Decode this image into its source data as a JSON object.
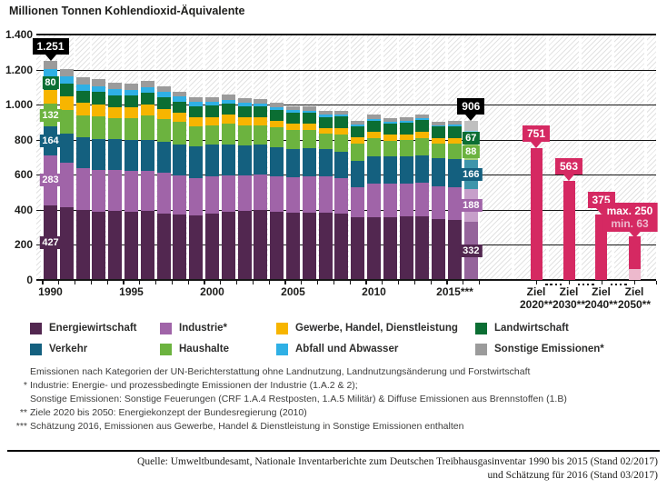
{
  "title": "Millionen Tonnen Kohlendioxid-Äquivalente",
  "chart_data": {
    "type": "bar",
    "stacked": true,
    "title": "Millionen Tonnen Kohlendioxid-Äquivalente",
    "years": [
      1990,
      1991,
      1992,
      1993,
      1994,
      1995,
      1996,
      1997,
      1998,
      1999,
      2000,
      2001,
      2002,
      2003,
      2004,
      2005,
      2006,
      2007,
      2008,
      2009,
      2010,
      2011,
      2012,
      2013,
      2014,
      2015,
      2016
    ],
    "estimate_year_index": 26,
    "x_axis_tick_labels": [
      {
        "index": 0,
        "label": "1990"
      },
      {
        "index": 5,
        "label": "1995"
      },
      {
        "index": 10,
        "label": "2000"
      },
      {
        "index": 15,
        "label": "2005"
      },
      {
        "index": 20,
        "label": "2010"
      },
      {
        "index": 25,
        "label": "2015***"
      }
    ],
    "y_axis": {
      "min": 0,
      "max": 1400,
      "step": 200,
      "tick_labels": [
        "0",
        "200",
        "400",
        "600",
        "800",
        "1.000",
        "1.200",
        "1.400"
      ]
    },
    "series": [
      {
        "name": "Energiewirtschaft",
        "color": "#522750",
        "estimate_tint": "#95649b",
        "values": [
          427,
          415,
          398,
          390,
          392,
          390,
          393,
          380,
          375,
          370,
          378,
          390,
          392,
          399,
          390,
          385,
          385,
          385,
          380,
          355,
          360,
          358,
          362,
          365,
          348,
          340,
          332
        ]
      },
      {
        "name": "Industrie",
        "color": "#a064a8",
        "estimate_tint": "#c79fca",
        "values": [
          283,
          254,
          242,
          239,
          235,
          230,
          227,
          232,
          221,
          209,
          211,
          207,
          202,
          202,
          202,
          202,
          208,
          205,
          199,
          174,
          191,
          193,
          187,
          189,
          186,
          188,
          188
        ]
      },
      {
        "name": "Verkehr",
        "color": "#14607f",
        "estimate_tint": "#3e95ab",
        "values": [
          164,
          168,
          173,
          176,
          175,
          177,
          177,
          176,
          179,
          184,
          181,
          177,
          175,
          170,
          167,
          160,
          157,
          154,
          153,
          152,
          153,
          154,
          154,
          157,
          159,
          163,
          166
        ]
      },
      {
        "name": "Haushalte",
        "color": "#6cb33f",
        "estimate_tint": "#a6d17f",
        "values": [
          132,
          134,
          126,
          130,
          122,
          128,
          140,
          130,
          125,
          115,
          114,
          120,
          114,
          112,
          110,
          108,
          104,
          92,
          100,
          96,
          104,
          90,
          94,
          100,
          85,
          88,
          88
        ]
      },
      {
        "name": "Gewerbe, Handel, Dienstleistung",
        "color": "#f7b500",
        "estimate_tint": "#fbd97f",
        "values": [
          78,
          77,
          70,
          68,
          63,
          60,
          65,
          58,
          52,
          48,
          44,
          48,
          44,
          44,
          40,
          38,
          38,
          32,
          36,
          36,
          38,
          32,
          34,
          36,
          30,
          32,
          0
        ]
      },
      {
        "name": "Landwirtschaft",
        "color": "#0b6e33",
        "estimate_tint": "#57a369",
        "values": [
          80,
          74,
          70,
          68,
          68,
          67,
          67,
          67,
          66,
          65,
          65,
          65,
          63,
          62,
          62,
          61,
          61,
          62,
          63,
          62,
          63,
          64,
          64,
          65,
          66,
          66,
          67
        ]
      },
      {
        "name": "Abfall und Abwasser",
        "color": "#2fb0e5",
        "estimate_tint": "#8ed4f2",
        "values": [
          38,
          37,
          36,
          35,
          34,
          33,
          31,
          29,
          27,
          25,
          23,
          21,
          19,
          17,
          15,
          14,
          13,
          12,
          12,
          11,
          11,
          10,
          10,
          10,
          10,
          10,
          10
        ]
      },
      {
        "name": "Sonstige Emissionen",
        "color": "#9b9b9b",
        "estimate_tint": "#bfbfbf",
        "values": [
          49,
          45,
          40,
          38,
          36,
          35,
          37,
          33,
          30,
          28,
          27,
          28,
          27,
          26,
          25,
          24,
          23,
          22,
          23,
          21,
          22,
          21,
          21,
          22,
          20,
          20,
          55
        ]
      }
    ],
    "labeled_segments": [
      {
        "bar_index": 0,
        "series": [
          "Energiewirtschaft",
          "Industrie",
          "Verkehr",
          "Haushalte",
          "Landwirtschaft"
        ]
      },
      {
        "bar_index": 26,
        "series": [
          "Energiewirtschaft",
          "Industrie",
          "Verkehr",
          "Haushalte",
          "Landwirtschaft"
        ]
      }
    ],
    "total_callouts": [
      {
        "bar_index": 0,
        "label": "1.251"
      },
      {
        "bar_index": 26,
        "label": "906"
      }
    ],
    "targets": {
      "color": "#d52962",
      "light_color": "#edb9cd",
      "items": [
        {
          "label_top": "Ziel",
          "label_bottom": "2020**",
          "value": 751,
          "callout": "751"
        },
        {
          "label_top": "Ziel",
          "label_bottom": "2030**",
          "value": 563,
          "callout": "563"
        },
        {
          "label_top": "Ziel",
          "label_bottom": "2040**",
          "value": 375,
          "callout": "375"
        },
        {
          "label_top": "Ziel",
          "label_bottom": "2050**",
          "value": 250,
          "min_value": 63,
          "callout_line1": "max. 250",
          "callout_line2": "min. 63"
        }
      ]
    }
  },
  "legend": {
    "items": [
      {
        "label": "Energiewirtschaft",
        "color": "#522750"
      },
      {
        "label": "Industrie*",
        "color": "#a064a8"
      },
      {
        "label": "Gewerbe, Handel, Dienstleistung",
        "color": "#f7b500"
      },
      {
        "label": "Landwirtschaft",
        "color": "#0b6e33"
      },
      {
        "label": "Verkehr",
        "color": "#14607f"
      },
      {
        "label": "Haushalte",
        "color": "#6cb33f"
      },
      {
        "label": "Abfall und Abwasser",
        "color": "#2fb0e5"
      },
      {
        "label": "Sonstige Emissionen*",
        "color": "#9b9b9b"
      }
    ]
  },
  "footnotes": [
    {
      "marker": "",
      "text": "Emissionen nach Kategorien der UN-Berichterstattung ohne Landnutzung, Landnutzungsänderung und Forstwirtschaft"
    },
    {
      "marker": "*",
      "text": "Industrie: Energie- und prozessbedingte Emissionen der Industrie (1.A.2 & 2);"
    },
    {
      "marker": "",
      "text": "Sonstige Emissionen: Sonstige Feuerungen (CRF 1.A.4 Restposten, 1.A.5 Militär) & Diffuse Emissionen aus Brennstoffen (1.B)"
    },
    {
      "marker": "**",
      "text": "Ziele 2020 bis 2050: Energiekonzept der Bundesregierung (2010)"
    },
    {
      "marker": "***",
      "text": "Schätzung 2016, Emissionen aus Gewerbe, Handel & Dienstleistung in Sonstige Emissionen enthalten"
    }
  ],
  "source": {
    "line1": "Quelle: Umweltbundesamt, Nationale Inventarberichte zum Deutschen Treibhausgasinventar 1990 bis 2015 (Stand 02/2017)",
    "line2": "und Schätzung für 2016 (Stand 03/2017)"
  }
}
